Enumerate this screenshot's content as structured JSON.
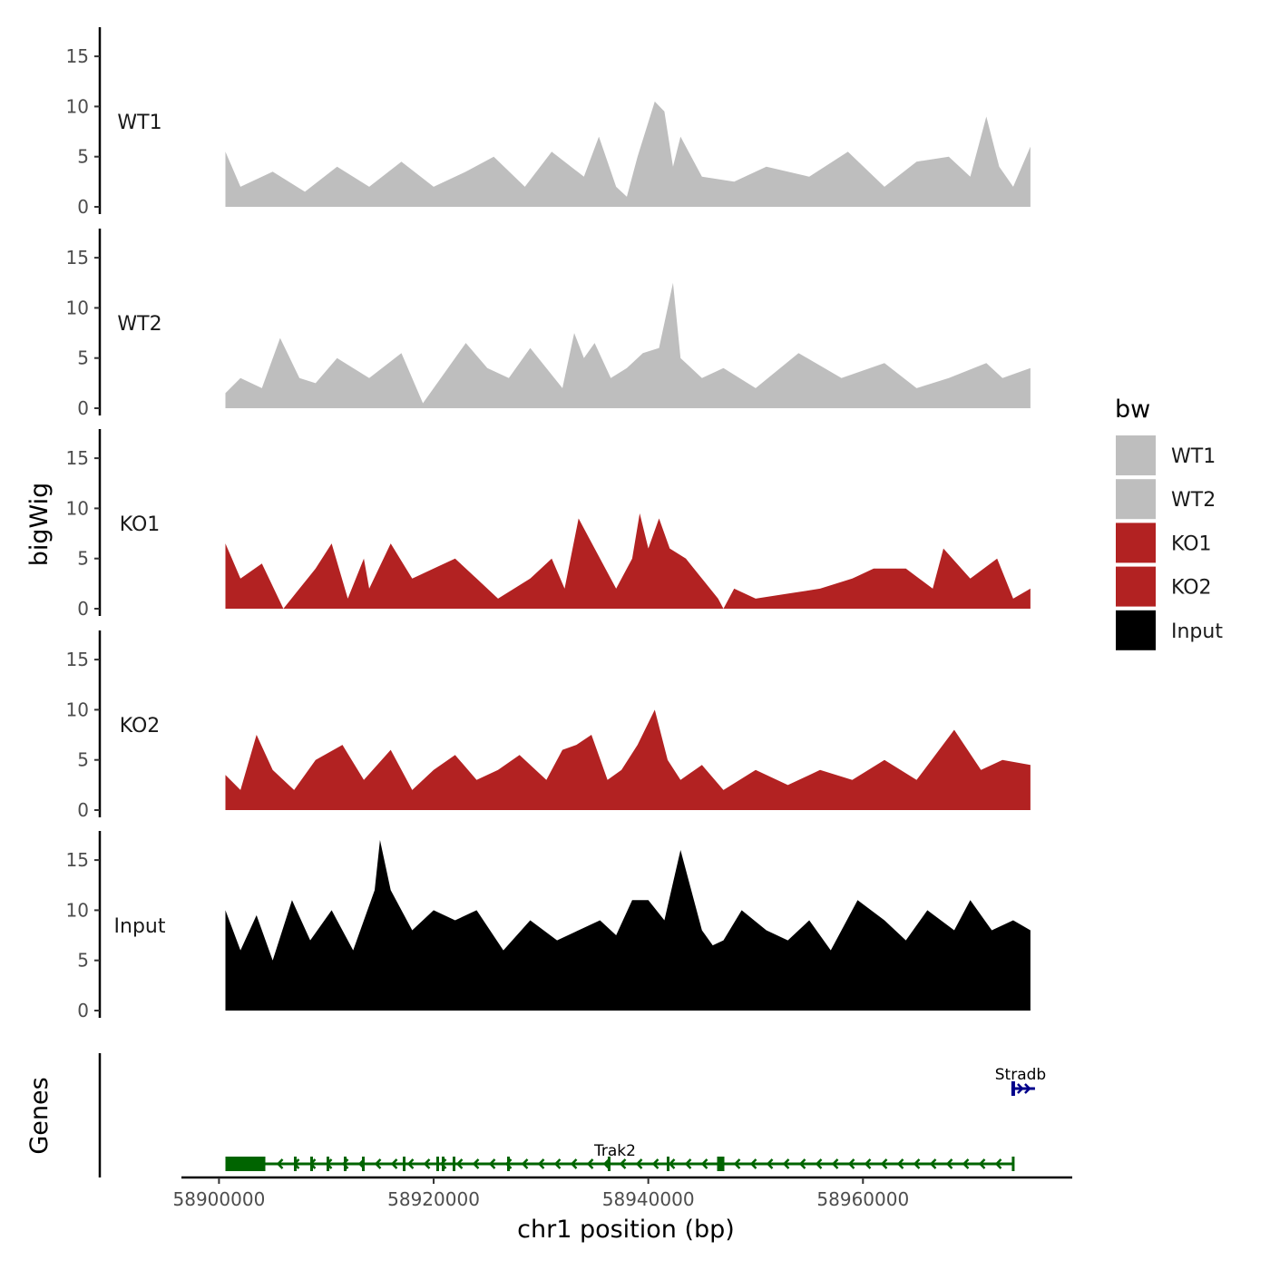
{
  "chart_data": {
    "type": "area",
    "title": "",
    "chromosome": "chr1",
    "region": [
      58900600,
      58975600
    ],
    "xlabel": "chr1 position (bp)",
    "ylabel": "bigWig",
    "genes_label": "Genes",
    "x_ticks": [
      58900000,
      58920000,
      58940000,
      58960000
    ],
    "x_tick_labels": [
      "58900000",
      "58920000",
      "58940000",
      "58960000"
    ],
    "x_range": [
      58896500,
      58979500
    ],
    "ylim": [
      0,
      17.5
    ],
    "y_ticks": [
      0,
      5,
      10,
      15
    ],
    "y_tick_labels": [
      "0",
      "5",
      "10",
      "15"
    ],
    "legend": {
      "title": "bw",
      "position": "right",
      "entries": [
        {
          "label": "WT1",
          "color": "#bebebe"
        },
        {
          "label": "WT2",
          "color": "#bebebe"
        },
        {
          "label": "KO1",
          "color": "#b22222"
        },
        {
          "label": "KO2",
          "color": "#b22222"
        },
        {
          "label": "Input",
          "color": "#000000"
        }
      ]
    },
    "series": [
      {
        "name": "WT1",
        "color": "#bebebe",
        "x": [
          58900600,
          58902000,
          58905000,
          58908000,
          58911000,
          58914000,
          58917000,
          58920000,
          58923000,
          58925600,
          58928500,
          58931000,
          58934000,
          58935400,
          58937000,
          58938000,
          58939000,
          58940600,
          58941500,
          58942300,
          58943000,
          58945000,
          58948000,
          58951000,
          58955000,
          58958600,
          58962000,
          58965000,
          58968000,
          58970000,
          58971500,
          58972700,
          58974000,
          58975600
        ],
        "values": [
          5.5,
          2,
          3.5,
          1.5,
          4,
          2,
          4.5,
          2,
          3.5,
          5,
          2,
          5.5,
          3,
          7,
          2,
          1,
          5,
          10.5,
          9.5,
          4,
          7,
          3,
          2.5,
          4,
          3,
          5.5,
          2,
          4.5,
          5,
          3,
          9,
          4,
          2,
          6
        ]
      },
      {
        "name": "WT2",
        "color": "#bebebe",
        "x": [
          58900600,
          58902000,
          58904000,
          58905700,
          58907500,
          58909000,
          58911000,
          58914000,
          58917000,
          58919000,
          58921000,
          58923000,
          58925000,
          58927000,
          58929000,
          58932000,
          58933100,
          58934000,
          58935000,
          58936500,
          58938000,
          58939500,
          58941000,
          58942300,
          58943000,
          58945000,
          58947000,
          58950000,
          58954000,
          58958000,
          58962000,
          58965000,
          58968000,
          58971500,
          58973000,
          58975600
        ],
        "values": [
          1.5,
          3,
          2,
          7,
          3,
          2.5,
          5,
          3,
          5.5,
          0.5,
          3.5,
          6.5,
          4,
          3,
          6,
          2,
          7.5,
          5,
          6.5,
          3,
          4,
          5.5,
          6,
          12.5,
          5,
          3,
          4,
          2,
          5.5,
          3,
          4.5,
          2,
          3,
          4.5,
          3,
          4
        ]
      },
      {
        "name": "KO1",
        "color": "#b22222",
        "x": [
          58900600,
          58902000,
          58904000,
          58906000,
          58907500,
          58909000,
          58910500,
          58912000,
          58913500,
          58914000,
          58916000,
          58918000,
          58920000,
          58922000,
          58924000,
          58926000,
          58929000,
          58931000,
          58932200,
          58933500,
          58935000,
          58937000,
          58938500,
          58939200,
          58940000,
          58941000,
          58942000,
          58943500,
          58945000,
          58946500,
          58947000,
          58948000,
          58950000,
          58953000,
          58956000,
          58959000,
          58961000,
          58964000,
          58966500,
          58967500,
          58970000,
          58972500,
          58974000,
          58975600
        ],
        "values": [
          6.5,
          3,
          4.5,
          0,
          2,
          4,
          6.5,
          1,
          5,
          2,
          6.5,
          3,
          4,
          5,
          3,
          1,
          3,
          5,
          2,
          9,
          6,
          2,
          5,
          9.5,
          6,
          9,
          6,
          5,
          3,
          1,
          0,
          2,
          1,
          1.5,
          2,
          3,
          4,
          4,
          2,
          6,
          3,
          5,
          1,
          2
        ]
      },
      {
        "name": "KO2",
        "color": "#b22222",
        "x": [
          58900600,
          58902000,
          58903500,
          58905000,
          58907000,
          58909000,
          58911500,
          58913500,
          58916000,
          58918000,
          58920000,
          58922000,
          58924000,
          58926000,
          58928000,
          58930500,
          58932000,
          58933300,
          58934700,
          58936200,
          58937500,
          58939000,
          58940600,
          58941800,
          58943000,
          58945000,
          58947000,
          58950000,
          58953000,
          58956000,
          58959000,
          58962000,
          58965000,
          58968500,
          58971000,
          58973000,
          58975600
        ],
        "values": [
          3.5,
          2,
          7.5,
          4,
          2,
          5,
          6.5,
          3,
          6,
          2,
          4,
          5.5,
          3,
          4,
          5.5,
          3,
          6,
          6.5,
          7.5,
          3,
          4,
          6.5,
          10,
          5,
          3,
          4.5,
          2,
          4,
          2.5,
          4,
          3,
          5,
          3,
          8,
          4,
          5,
          4.5
        ]
      },
      {
        "name": "Input",
        "color": "#000000",
        "x": [
          58900600,
          58902000,
          58903500,
          58905000,
          58906800,
          58908500,
          58910500,
          58912500,
          58914500,
          58915000,
          58916000,
          58918000,
          58920000,
          58922000,
          58924000,
          58926500,
          58929000,
          58931500,
          58933500,
          58935500,
          58937000,
          58938500,
          58940000,
          58941500,
          58943000,
          58945000,
          58946000,
          58947000,
          58948700,
          58951000,
          58953000,
          58955000,
          58957000,
          58959500,
          58962000,
          58964000,
          58966000,
          58968500,
          58970000,
          58972000,
          58974000,
          58975600
        ],
        "values": [
          10,
          6,
          9.5,
          5,
          11,
          7,
          10,
          6,
          12,
          17,
          12,
          8,
          10,
          9,
          10,
          6,
          9,
          7,
          8,
          9,
          7.5,
          11,
          11,
          9,
          16,
          8,
          6.5,
          7,
          10,
          8,
          7,
          9,
          6,
          11,
          9,
          7,
          10,
          8,
          11,
          8,
          9,
          8
        ]
      }
    ],
    "genes": [
      {
        "name": "Trak2",
        "strand": "-",
        "start": 58900600,
        "end": 58974000,
        "color": "#006400"
      },
      {
        "name": "Stradb",
        "strand": "+",
        "start": 58974000,
        "end": 58975600,
        "color": "#00008b"
      }
    ]
  }
}
